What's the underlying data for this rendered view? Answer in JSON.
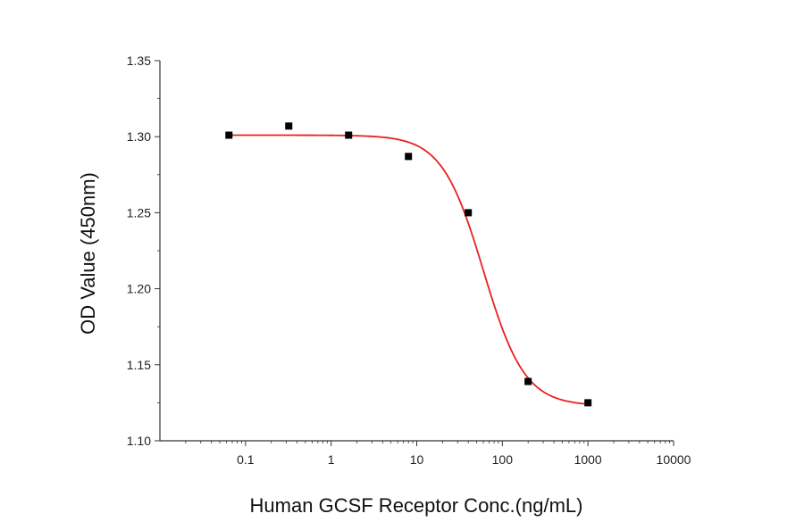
{
  "chart_data": {
    "type": "scatter",
    "title": "",
    "xlabel": "Human GCSF Receptor Conc.(ng/mL)",
    "ylabel": "OD Value (450nm)",
    "xscale": "log",
    "xlim": [
      0.01,
      10000
    ],
    "ylim": [
      1.1,
      1.35
    ],
    "xticks": [
      0.1,
      1,
      10,
      100,
      1000,
      10000
    ],
    "xtick_labels": [
      "0.1",
      "1",
      "10",
      "100",
      "1000",
      "10000"
    ],
    "yticks": [
      1.1,
      1.15,
      1.2,
      1.25,
      1.3,
      1.35
    ],
    "ytick_labels": [
      "1.10",
      "1.15",
      "1.20",
      "1.25",
      "1.30",
      "1.35"
    ],
    "grid": false,
    "points": {
      "x": [
        0.064,
        0.32,
        1.6,
        8,
        40,
        200,
        1000
      ],
      "y": [
        1.301,
        1.307,
        1.301,
        1.287,
        1.25,
        1.139,
        1.125
      ]
    },
    "fit_curve": {
      "model": "4PL",
      "top": 1.301,
      "bottom": 1.123,
      "ec50": 60,
      "hill": 1.8,
      "x_range": [
        0.064,
        1000
      ]
    },
    "colors": {
      "points": "#000000",
      "fit": "#e8211f",
      "axis": "#333333"
    }
  }
}
